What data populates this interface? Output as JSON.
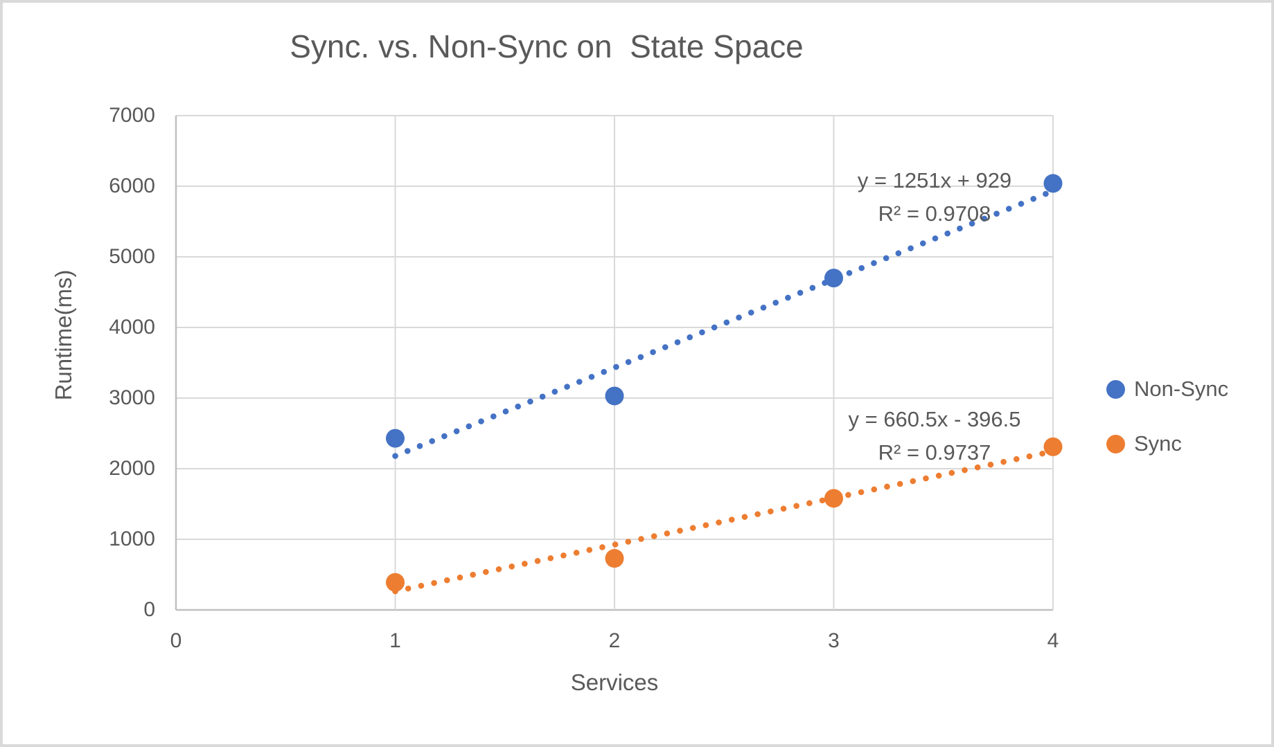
{
  "chart_data": {
    "type": "scatter",
    "title": "Sync. vs. Non-Sync on  State Space",
    "xlabel": "Services",
    "ylabel": "Runtime(ms)",
    "xlim": [
      0,
      4
    ],
    "ylim": [
      0,
      7000
    ],
    "x_ticks": [
      0,
      1,
      2,
      3,
      4
    ],
    "y_ticks": [
      0,
      1000,
      2000,
      3000,
      4000,
      5000,
      6000,
      7000
    ],
    "grid": true,
    "legend_position": "right",
    "colors": {
      "grid": "#d9d9d9",
      "axis": "#bfbfbf",
      "text": "#595959"
    },
    "series": [
      {
        "name": "Non-Sync",
        "color": "#4472c4",
        "x": [
          1,
          2,
          3,
          4
        ],
        "values": [
          2430,
          3030,
          4700,
          6040
        ],
        "trendline": {
          "slope": 1251,
          "intercept": 929,
          "equation_label": "y = 1251x + 929",
          "r2_label": "R² = 0.9708"
        }
      },
      {
        "name": "Sync",
        "color": "#ed7d31",
        "x": [
          1,
          2,
          3,
          4
        ],
        "values": [
          390,
          730,
          1580,
          2310
        ],
        "trendline": {
          "slope": 660.5,
          "intercept": -396.5,
          "equation_label": "y = 660.5x - 396.5",
          "r2_label": "R² = 0.9737"
        }
      }
    ]
  }
}
